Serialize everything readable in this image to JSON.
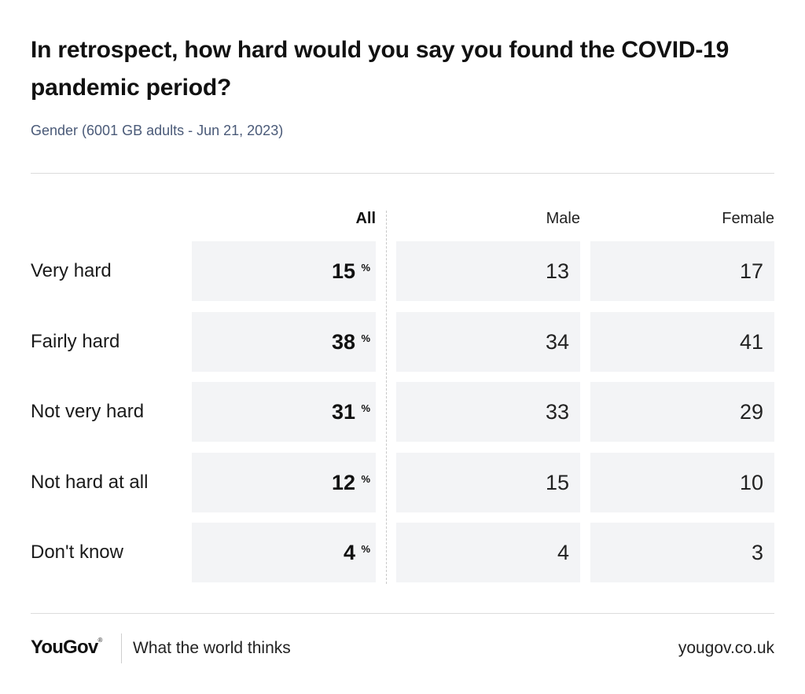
{
  "chart_data": {
    "type": "table",
    "title": "In retrospect, how hard would you say you found the COVID-19 pandemic period?",
    "subtitle": "Gender (6001 GB adults - Jun 21, 2023)",
    "columns": [
      "All",
      "Male",
      "Female"
    ],
    "percent_symbol": "%",
    "rows": [
      {
        "label": "Very hard",
        "values": [
          "15",
          "13",
          "17"
        ]
      },
      {
        "label": "Fairly hard",
        "values": [
          "38",
          "34",
          "41"
        ]
      },
      {
        "label": "Not very hard",
        "values": [
          "31",
          "33",
          "29"
        ]
      },
      {
        "label": "Not hard at all",
        "values": [
          "12",
          "15",
          "10"
        ]
      },
      {
        "label": "Don't know",
        "values": [
          "4",
          "4",
          "3"
        ]
      }
    ]
  },
  "footer": {
    "brand": "YouGov",
    "registered_mark": "®",
    "tagline": "What the world thinks",
    "url": "yougov.co.uk"
  },
  "colors": {
    "cell_background": "#f3f4f6",
    "subtitle": "#4a5a78",
    "text": "#111111"
  }
}
